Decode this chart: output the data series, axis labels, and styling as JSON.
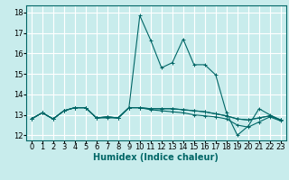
{
  "background_color": "#c8ecec",
  "grid_color": "#ffffff",
  "line_color": "#006666",
  "xlabel": "Humidex (Indice chaleur)",
  "tick_fontsize": 6,
  "xlabel_fontsize": 7,
  "xlim": [
    -0.5,
    23.5
  ],
  "ylim": [
    11.75,
    18.35
  ],
  "yticks": [
    12,
    13,
    14,
    15,
    16,
    17,
    18
  ],
  "xticks": [
    0,
    1,
    2,
    3,
    4,
    5,
    6,
    7,
    8,
    9,
    10,
    11,
    12,
    13,
    14,
    15,
    16,
    17,
    18,
    19,
    20,
    21,
    22,
    23
  ],
  "series": [
    [
      12.8,
      13.1,
      12.8,
      13.2,
      13.35,
      13.35,
      12.85,
      12.9,
      12.85,
      13.35,
      13.35,
      13.3,
      13.3,
      13.3,
      13.25,
      13.2,
      13.15,
      13.05,
      12.95,
      12.8,
      12.75,
      12.85,
      12.95,
      12.75
    ],
    [
      12.8,
      13.1,
      12.8,
      13.2,
      13.35,
      13.35,
      12.85,
      12.9,
      12.85,
      13.35,
      17.85,
      16.65,
      15.3,
      15.55,
      16.7,
      15.45,
      15.45,
      14.95,
      13.1,
      12.0,
      12.45,
      13.3,
      13.0,
      12.75
    ],
    [
      12.8,
      13.1,
      12.8,
      13.2,
      13.35,
      13.35,
      12.85,
      12.9,
      12.85,
      13.35,
      13.35,
      13.3,
      13.3,
      13.3,
      13.25,
      13.2,
      13.15,
      13.05,
      12.95,
      12.8,
      12.75,
      12.85,
      12.95,
      12.75
    ],
    [
      12.8,
      13.1,
      12.8,
      13.2,
      13.35,
      13.35,
      12.85,
      12.85,
      12.85,
      13.35,
      13.35,
      13.25,
      13.2,
      13.15,
      13.1,
      13.0,
      12.95,
      12.9,
      12.8,
      12.5,
      12.4,
      12.65,
      12.9,
      12.7
    ]
  ]
}
